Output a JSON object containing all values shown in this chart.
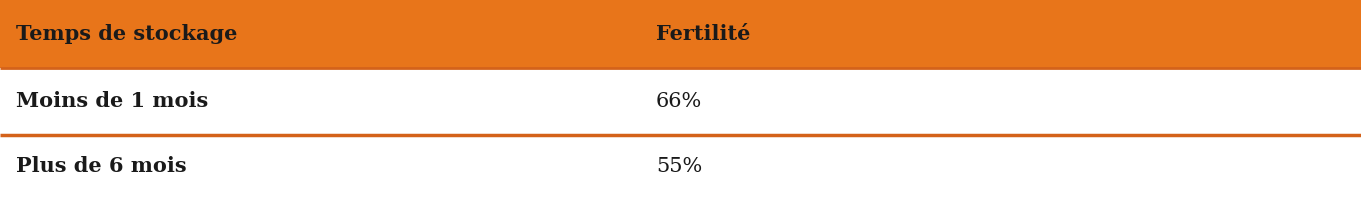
{
  "header": [
    "Temps de stockage",
    "Fertilité"
  ],
  "rows": [
    [
      "Moins de 1 mois",
      "66%"
    ],
    [
      "Plus de 6 mois",
      "55%"
    ]
  ],
  "header_bg": "#E8751A",
  "header_text_color": "#1a1a1a",
  "row_bg": "#FFFFFF",
  "divider_color": "#D4621A",
  "text_color": "#1a1a1a",
  "col_split": 0.47,
  "font_size": 15,
  "header_font_size": 15,
  "fig_width": 13.61,
  "fig_height": 1.98,
  "dpi": 100
}
